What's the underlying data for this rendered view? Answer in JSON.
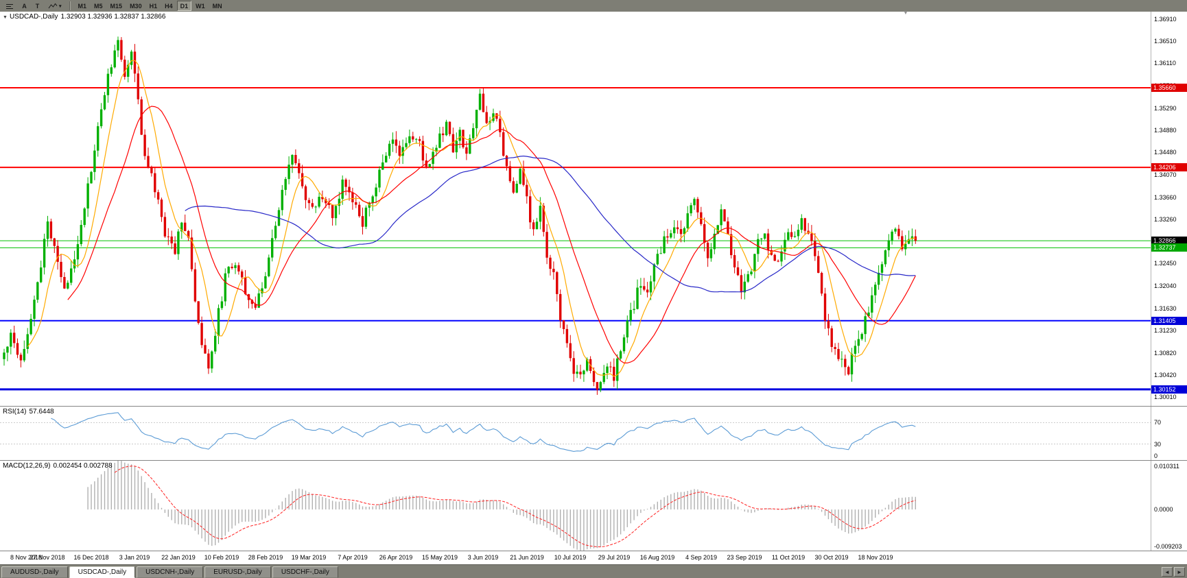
{
  "toolbar": {
    "a_label": "A",
    "t_label": "T",
    "timeframes": [
      "M1",
      "M5",
      "M15",
      "M30",
      "H1",
      "H4",
      "D1",
      "W1",
      "MN"
    ],
    "active_timeframe": "D1"
  },
  "chart_data": {
    "type": "candlestick",
    "symbol": "USDCAD",
    "timeframe": "Daily",
    "title": "USDCAD-,Daily",
    "ohlc_line": "1.32903 1.32936 1.32837 1.32866",
    "bar_count": 273,
    "last_close": 1.32866,
    "y_range": {
      "min": 1.2985,
      "max": 1.3705
    },
    "y_ticks": [
      "1.36910",
      "1.36510",
      "1.36110",
      "1.35700",
      "1.35290",
      "1.34880",
      "1.34480",
      "1.34070",
      "1.33660",
      "1.33260",
      "1.32860",
      "1.32450",
      "1.32040",
      "1.31630",
      "1.31230",
      "1.30820",
      "1.30420",
      "1.30010"
    ],
    "x_labels": [
      "8 Nov 2018",
      "27 Nov 2018",
      "16 Dec 2018",
      "3 Jan 2019",
      "22 Jan 2019",
      "10 Feb 2019",
      "28 Feb 2019",
      "19 Mar 2019",
      "7 Apr 2019",
      "26 Apr 2019",
      "15 May 2019",
      "3 Jun 2019",
      "21 Jun 2019",
      "10 Jul 2019",
      "29 Jul 2019",
      "16 Aug 2019",
      "4 Sep 2019",
      "23 Sep 2019",
      "11 Oct 2019",
      "30 Oct 2019",
      "18 Nov 2019"
    ],
    "bars_per_label": 13,
    "candle_colors": {
      "up": "#00b000",
      "down": "#e00000"
    },
    "close_anchors": [
      [
        0,
        1.308
      ],
      [
        2,
        1.312
      ],
      [
        5,
        1.307
      ],
      [
        8,
        1.315
      ],
      [
        11,
        1.324
      ],
      [
        13,
        1.332
      ],
      [
        15,
        1.328
      ],
      [
        18,
        1.319
      ],
      [
        21,
        1.326
      ],
      [
        24,
        1.335
      ],
      [
        27,
        1.345
      ],
      [
        30,
        1.356
      ],
      [
        32,
        1.361
      ],
      [
        34,
        1.365
      ],
      [
        36,
        1.359
      ],
      [
        38,
        1.363
      ],
      [
        40,
        1.354
      ],
      [
        42,
        1.344
      ],
      [
        45,
        1.338
      ],
      [
        48,
        1.33
      ],
      [
        51,
        1.327
      ],
      [
        53,
        1.333
      ],
      [
        55,
        1.329
      ],
      [
        57,
        1.317
      ],
      [
        59,
        1.309
      ],
      [
        61,
        1.306
      ],
      [
        63,
        1.312
      ],
      [
        66,
        1.322
      ],
      [
        69,
        1.325
      ],
      [
        72,
        1.32
      ],
      [
        75,
        1.316
      ],
      [
        78,
        1.323
      ],
      [
        81,
        1.331
      ],
      [
        84,
        1.34
      ],
      [
        86,
        1.345
      ],
      [
        89,
        1.338
      ],
      [
        92,
        1.334
      ],
      [
        95,
        1.337
      ],
      [
        98,
        1.333
      ],
      [
        101,
        1.339
      ],
      [
        104,
        1.336
      ],
      [
        107,
        1.332
      ],
      [
        110,
        1.337
      ],
      [
        113,
        1.343
      ],
      [
        116,
        1.347
      ],
      [
        118,
        1.344
      ],
      [
        121,
        1.348
      ],
      [
        124,
        1.346
      ],
      [
        126,
        1.342
      ],
      [
        129,
        1.346
      ],
      [
        132,
        1.35
      ],
      [
        134,
        1.345
      ],
      [
        136,
        1.349
      ],
      [
        138,
        1.344
      ],
      [
        140,
        1.35
      ],
      [
        142,
        1.355
      ],
      [
        144,
        1.35
      ],
      [
        146,
        1.353
      ],
      [
        148,
        1.348
      ],
      [
        150,
        1.342
      ],
      [
        152,
        1.338
      ],
      [
        154,
        1.341
      ],
      [
        156,
        1.336
      ],
      [
        158,
        1.33
      ],
      [
        160,
        1.334
      ],
      [
        162,
        1.326
      ],
      [
        164,
        1.322
      ],
      [
        166,
        1.315
      ],
      [
        168,
        1.309
      ],
      [
        170,
        1.305
      ],
      [
        172,
        1.304
      ],
      [
        174,
        1.307
      ],
      [
        176,
        1.303
      ],
      [
        178,
        1.302
      ],
      [
        180,
        1.306
      ],
      [
        182,
        1.304
      ],
      [
        184,
        1.309
      ],
      [
        186,
        1.313
      ],
      [
        188,
        1.317
      ],
      [
        190,
        1.321
      ],
      [
        192,
        1.319
      ],
      [
        194,
        1.324
      ],
      [
        196,
        1.327
      ],
      [
        198,
        1.33
      ],
      [
        200,
        1.332
      ],
      [
        202,
        1.329
      ],
      [
        204,
        1.333
      ],
      [
        206,
        1.337
      ],
      [
        208,
        1.331
      ],
      [
        210,
        1.326
      ],
      [
        212,
        1.33
      ],
      [
        214,
        1.334
      ],
      [
        216,
        1.33
      ],
      [
        218,
        1.324
      ],
      [
        220,
        1.32
      ],
      [
        222,
        1.322
      ],
      [
        224,
        1.326
      ],
      [
        226,
        1.33
      ],
      [
        228,
        1.328
      ],
      [
        230,
        1.324
      ],
      [
        232,
        1.327
      ],
      [
        234,
        1.331
      ],
      [
        236,
        1.329
      ],
      [
        238,
        1.333
      ],
      [
        240,
        1.33
      ],
      [
        242,
        1.326
      ],
      [
        244,
        1.318
      ],
      [
        246,
        1.312
      ],
      [
        248,
        1.308
      ],
      [
        250,
        1.306
      ],
      [
        252,
        1.305
      ],
      [
        254,
        1.309
      ],
      [
        256,
        1.312
      ],
      [
        258,
        1.316
      ],
      [
        260,
        1.32
      ],
      [
        262,
        1.325
      ],
      [
        264,
        1.329
      ],
      [
        266,
        1.331
      ],
      [
        268,
        1.328
      ],
      [
        270,
        1.33
      ],
      [
        272,
        1.3287
      ]
    ],
    "moving_averages": [
      {
        "name": "ma-fast",
        "period": 8,
        "color": "#ffaa00"
      },
      {
        "name": "ma-mid",
        "period": 20,
        "color": "#ff0000"
      },
      {
        "name": "ma-slow",
        "period": 55,
        "color": "#2828c8"
      }
    ],
    "horizontal_lines": [
      {
        "value": 1.3566,
        "label": "1.35660",
        "color": "#ff0000",
        "width": 2,
        "tag_bg": "#e00000"
      },
      {
        "value": 1.34206,
        "label": "1.34206",
        "color": "#ff0000",
        "width": 2,
        "tag_bg": "#e00000"
      },
      {
        "value": 1.32866,
        "label": "1.32866",
        "color": "#00c000",
        "width": 1,
        "tag_bg": "#000000"
      },
      {
        "value": 1.32737,
        "label": "1.32737",
        "color": "#00c000",
        "width": 1,
        "tag_bg": "#00a800"
      },
      {
        "value": 1.31405,
        "label": "1.31405",
        "color": "#0000ff",
        "width": 2,
        "tag_bg": "#0000d8"
      },
      {
        "value": 1.30152,
        "label": "1.30152",
        "color": "#0000e0",
        "width": 3,
        "tag_bg": "#0000d8"
      }
    ],
    "indicators": {
      "rsi": {
        "label": "RSI(14)",
        "value": "57.6448",
        "period": 14,
        "levels": [
          70,
          30,
          0
        ],
        "color": "#5b9bd5"
      },
      "macd": {
        "label": "MACD(12,26,9)",
        "values_text": "0.002454 0.002788",
        "fast": 12,
        "slow": 26,
        "signal": 9,
        "scale_labels": [
          "0.010311",
          "0.0000",
          "-0.009203"
        ],
        "hist_color": "#b0b0b0",
        "signal_color": "#ff2020"
      }
    }
  },
  "tabs": {
    "items": [
      "AUDUSD-,Daily",
      "USDCAD-,Daily",
      "USDCNH-,Daily",
      "EURUSD-,Daily",
      "USDCHF-,Daily"
    ],
    "active": "USDCAD-,Daily"
  }
}
